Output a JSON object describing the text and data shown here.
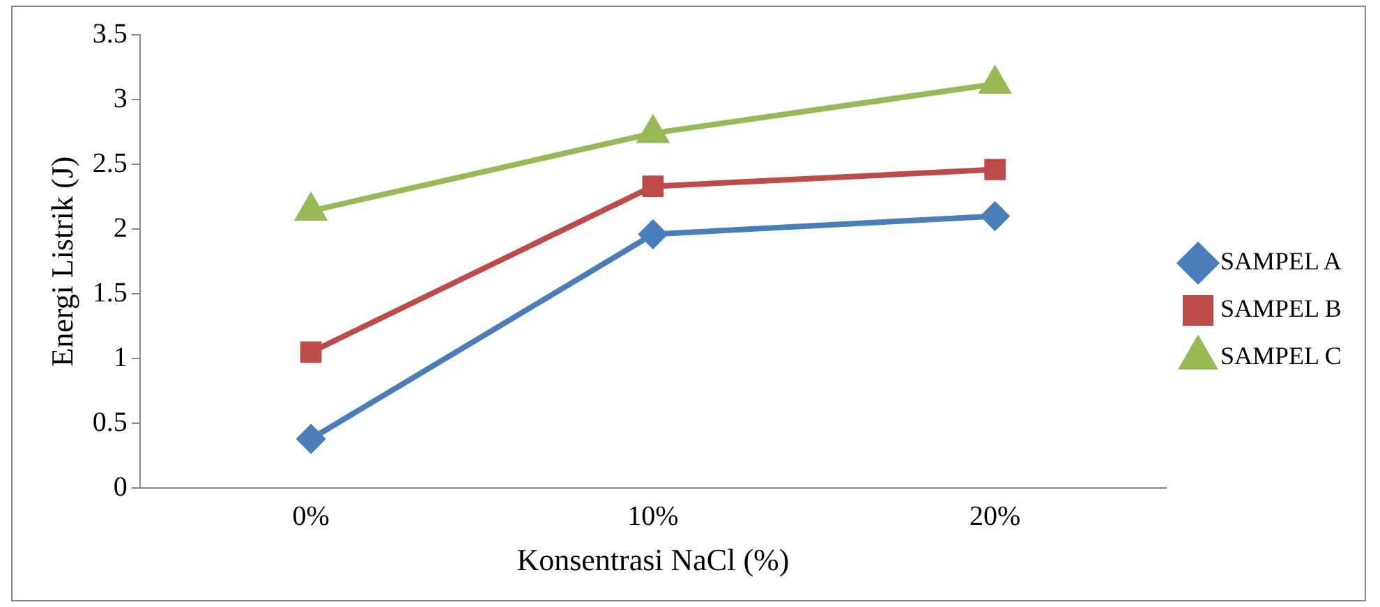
{
  "chart_data": {
    "type": "line",
    "xlabel": "Konsentrasi NaCl (%)",
    "ylabel": "Energi Listrik (J)",
    "categories": [
      "0%",
      "10%",
      "20%"
    ],
    "series": [
      {
        "name": "SAMPEL A",
        "color": "#4a7ebb",
        "values": [
          0.38,
          1.96,
          2.1
        ],
        "marker": "diamond"
      },
      {
        "name": "SAMPEL B",
        "color": "#be4b48",
        "values": [
          1.05,
          2.33,
          2.46
        ],
        "marker": "square"
      },
      {
        "name": "SAMPEL C",
        "color": "#98b954",
        "values": [
          2.14,
          2.74,
          3.12
        ],
        "marker": "triangle"
      }
    ],
    "ylim": [
      0,
      3.5
    ],
    "yticks": [
      0,
      0.5,
      1,
      1.5,
      2,
      2.5,
      3,
      3.5
    ],
    "grid": false,
    "legend": "right",
    "line_style": "solid"
  }
}
